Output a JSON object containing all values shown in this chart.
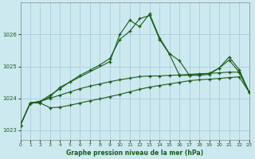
{
  "title": "Graphe pression niveau de la mer (hPa)",
  "bg_color": "#cce9f0",
  "grid_color": "#aaccdd",
  "line_color": "#1a5c1a",
  "xlim": [
    0,
    23
  ],
  "ylim": [
    1022.7,
    1027.0
  ],
  "yticks": [
    1023,
    1024,
    1025,
    1026
  ],
  "xticks": [
    0,
    1,
    2,
    3,
    4,
    5,
    6,
    7,
    8,
    9,
    10,
    11,
    12,
    13,
    14,
    15,
    16,
    17,
    18,
    19,
    20,
    21,
    22,
    23
  ],
  "series1_x": [
    0,
    1,
    2,
    3,
    4,
    5,
    6,
    7,
    8,
    9,
    10,
    11,
    12,
    13,
    14,
    15,
    16,
    17,
    18,
    19,
    20,
    21,
    22,
    23
  ],
  "series1_y": [
    1023.15,
    1023.85,
    1023.85,
    1023.7,
    1023.72,
    1023.78,
    1023.85,
    1023.92,
    1023.98,
    1024.05,
    1024.12,
    1024.2,
    1024.28,
    1024.35,
    1024.4,
    1024.45,
    1024.5,
    1024.55,
    1024.58,
    1024.6,
    1024.62,
    1024.65,
    1024.67,
    1024.2
  ],
  "series2_x": [
    0,
    1,
    2,
    3,
    4,
    5,
    6,
    7,
    8,
    9,
    10,
    11,
    12,
    13,
    14,
    15,
    16,
    17,
    18,
    19,
    20,
    21,
    22,
    23
  ],
  "series2_y": [
    1023.15,
    1023.85,
    1023.9,
    1024.0,
    1024.1,
    1024.2,
    1024.3,
    1024.38,
    1024.45,
    1024.52,
    1024.58,
    1024.63,
    1024.68,
    1024.7,
    1024.7,
    1024.72,
    1024.73,
    1024.75,
    1024.77,
    1024.78,
    1024.8,
    1024.82,
    1024.82,
    1024.2
  ],
  "series3_x": [
    0,
    1,
    2,
    3,
    4,
    5,
    6,
    7,
    8,
    9,
    10,
    11,
    12,
    13,
    14,
    15,
    16,
    17,
    18,
    19,
    20,
    21,
    22,
    23
  ],
  "series3_y": [
    1023.15,
    1023.85,
    1023.9,
    1024.1,
    1024.3,
    1024.52,
    1024.72,
    1024.88,
    1025.05,
    1025.25,
    1025.85,
    1026.1,
    1026.5,
    1026.6,
    1025.85,
    1025.38,
    1024.72,
    1024.72,
    1024.75,
    1024.78,
    1024.95,
    1025.2,
    1024.82,
    1024.2
  ],
  "series4_x": [
    0,
    1,
    2,
    3,
    4,
    9,
    10,
    11,
    12,
    13,
    14,
    15,
    16,
    17,
    18,
    19,
    20,
    21,
    22,
    23
  ],
  "series4_y": [
    1023.15,
    1023.85,
    1023.9,
    1024.05,
    1024.35,
    1025.15,
    1026.0,
    1026.45,
    1026.25,
    1026.65,
    1025.9,
    1025.4,
    1025.18,
    1024.72,
    1024.72,
    1024.75,
    1024.95,
    1025.3,
    1024.9,
    1024.2
  ]
}
